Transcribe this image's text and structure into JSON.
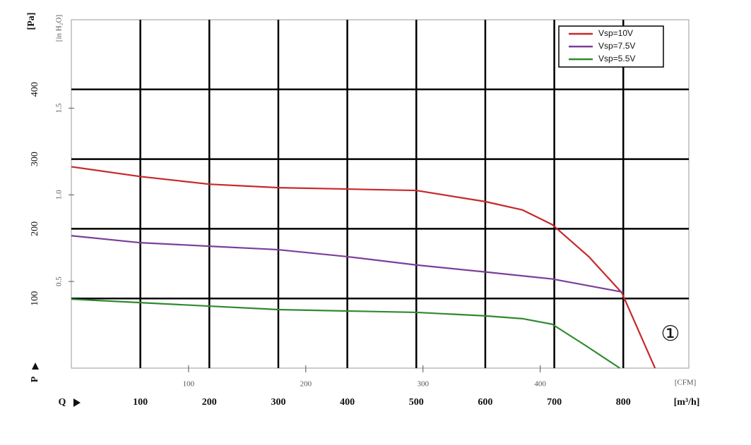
{
  "chart_data": {
    "type": "line",
    "y_label": "[Pa]",
    "y2_label": "[in H₂O]",
    "x_label": "[m³/h]",
    "x2_label": "[CFM]",
    "y_symbol": "P",
    "x_symbol": "Q",
    "curve_marker": "①",
    "xlim": [
      0,
      895
    ],
    "xticks": [
      100,
      200,
      300,
      400,
      500,
      600,
      700,
      800
    ],
    "ylim": [
      0,
      500
    ],
    "yticks": [
      100,
      200,
      300,
      400
    ],
    "x2lim": [
      0,
      526.8
    ],
    "x2ticks": [
      100,
      200,
      300,
      400
    ],
    "y2lim": [
      0,
      2.01
    ],
    "y2ticks": [
      0.5,
      {
        "value": 1,
        "label": "1.0"
      },
      1.5
    ],
    "grid": true,
    "legend": "top-right",
    "series": [
      {
        "name": "Vsp=10V",
        "color": "#c8282a",
        "x": [
          0,
          100,
          200,
          300,
          400,
          500,
          600,
          654,
          697,
          750,
          798,
          846
        ],
        "values": [
          289,
          275,
          264,
          259,
          257,
          255,
          239,
          227,
          206,
          160,
          108,
          0
        ]
      },
      {
        "name": "Vsp=7.5V",
        "color": "#7b3f9b",
        "x": [
          0,
          100,
          200,
          300,
          400,
          500,
          600,
          697,
          800
        ],
        "values": [
          190,
          180,
          175,
          170,
          160,
          148,
          138,
          128,
          109
        ]
      },
      {
        "name": "Vsp=5.5V",
        "color": "#2f8a2f",
        "x": [
          0,
          100,
          200,
          300,
          400,
          500,
          600,
          654,
          697,
          746,
          795
        ],
        "values": [
          99,
          94,
          89,
          84,
          82,
          80,
          75,
          71,
          63,
          32,
          0
        ]
      }
    ]
  }
}
